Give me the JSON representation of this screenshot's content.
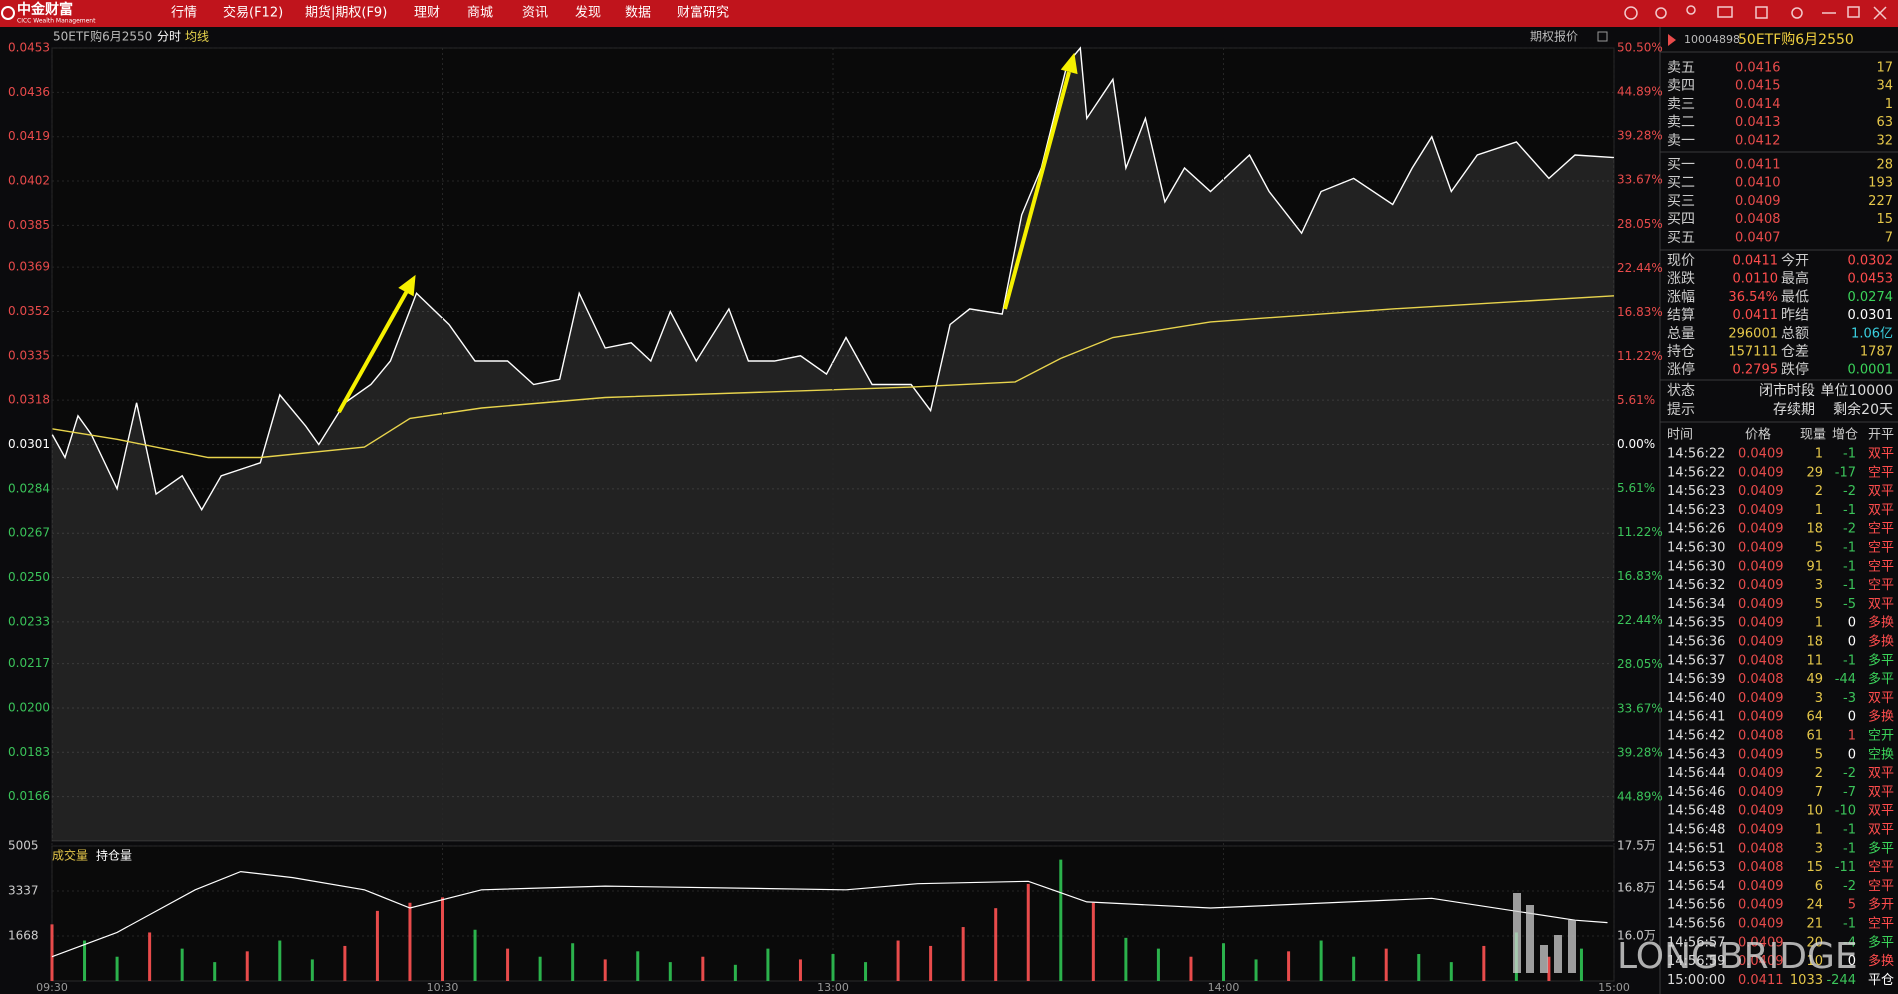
{
  "menu": {
    "brand": "中金财富",
    "brand_en": "CICC Wealth Management",
    "items": [
      "行情",
      "交易(F12)",
      "期货|期权(F9)",
      "理财",
      "商城",
      "资讯",
      "发现",
      "数据",
      "财富研究"
    ]
  },
  "toolbar": {
    "quote_button": "期权报价"
  },
  "chart_data": [
    {
      "type": "line",
      "title": "50ETF购6月2550",
      "label": "分时",
      "xlim": [
        0,
        240
      ],
      "ylim": [
        0.0149,
        0.0453
      ],
      "y2lim": [
        -50.5,
        50.5
      ],
      "grid": true,
      "yticks": [
        0.0453,
        0.0436,
        0.0419,
        0.0402,
        0.0385,
        0.0369,
        0.0352,
        0.0335,
        0.0318,
        0.0301,
        0.0284,
        0.0267,
        {
          "value": 0.025,
          "label": "0.0250"
        },
        0.0233,
        0.0217,
        {
          "value": 0.02,
          "label": "0.0200"
        },
        0.0183,
        0.0166
      ],
      "y2ticks": [
        {
          "value": 50.5,
          "label": "50.50%"
        },
        {
          "value": 44.89,
          "label": "44.89%"
        },
        {
          "value": 39.28,
          "label": "39.28%"
        },
        {
          "value": 33.67,
          "label": "33.67%"
        },
        {
          "value": 28.05,
          "label": "28.05%"
        },
        {
          "value": 22.44,
          "label": "22.44%"
        },
        {
          "value": 16.83,
          "label": "16.83%"
        },
        {
          "value": 11.22,
          "label": "11.22%"
        },
        {
          "value": 5.61,
          "label": "5.61%"
        },
        {
          "value": 0,
          "label": "0.00%"
        },
        {
          "value": -5.61,
          "label": "5.61%"
        },
        {
          "value": -11.22,
          "label": "11.22%"
        },
        {
          "value": -16.83,
          "label": "16.83%"
        },
        {
          "value": -22.44,
          "label": "22.44%"
        },
        {
          "value": -28.05,
          "label": "28.05%"
        },
        {
          "value": -33.67,
          "label": "33.67%"
        },
        {
          "value": -39.28,
          "label": "39.28%"
        },
        {
          "value": -44.89,
          "label": "44.89%"
        }
      ],
      "series": [
        {
          "color": "#ffffff",
          "fill": true,
          "x": [
            0,
            2,
            4,
            6,
            10,
            13,
            16,
            20,
            23,
            26,
            32,
            35,
            39,
            41,
            45,
            49,
            52,
            56,
            61,
            65,
            70,
            74,
            78,
            81,
            85,
            89,
            92,
            95,
            99,
            104,
            107,
            111,
            115,
            119,
            122,
            126,
            132,
            135,
            138,
            141,
            146,
            149,
            152,
            156,
            158,
            159,
            163,
            165,
            168,
            171,
            174,
            178,
            184,
            187,
            192,
            195,
            200,
            206,
            209,
            212,
            215,
            219,
            225,
            230,
            234,
            240
          ],
          "values": [
            0.0305,
            0.0296,
            0.0312,
            0.0305,
            0.0284,
            0.0317,
            0.0282,
            0.0289,
            0.0276,
            0.0289,
            0.0294,
            0.032,
            0.0308,
            0.0301,
            0.0317,
            0.0324,
            0.0333,
            0.0359,
            0.0347,
            0.0333,
            0.0333,
            0.0324,
            0.0326,
            0.0359,
            0.0338,
            0.034,
            0.0333,
            0.0352,
            0.0333,
            0.0353,
            0.0333,
            0.0333,
            0.0335,
            0.0328,
            0.0342,
            0.0324,
            0.0324,
            0.0314,
            0.0347,
            0.0353,
            0.0351,
            0.0389,
            0.0407,
            0.0447,
            0.0453,
            0.0426,
            0.0441,
            0.0407,
            0.0426,
            0.0394,
            0.0407,
            0.0398,
            0.0412,
            0.0398,
            0.0382,
            0.0398,
            0.0403,
            0.0393,
            0.0407,
            0.0419,
            0.0398,
            0.0412,
            0.0417,
            0.0403,
            0.0412,
            0.0411
          ]
        },
        {
          "name": "均线",
          "color": "#e8d44d",
          "x": [
            0,
            10,
            24,
            32,
            48,
            55,
            66,
            85,
            132,
            148,
            155,
            163,
            178,
            206,
            240
          ],
          "values": [
            0.0307,
            0.0303,
            0.0296,
            0.0296,
            0.03,
            0.0311,
            0.0315,
            0.0319,
            0.0323,
            0.0325,
            0.0334,
            0.0342,
            0.0348,
            0.0353,
            0.0358
          ]
        }
      ]
    },
    {
      "type": "bar",
      "xlim": [
        0,
        240
      ],
      "ylim": [
        0,
        5005
      ],
      "y2lim": [
        152500,
        175000
      ],
      "grid": true,
      "xticks": [
        {
          "value": 0,
          "label": "09:30"
        },
        {
          "value": 60,
          "label": "10:30"
        },
        {
          "value": 120,
          "label": "13:00"
        },
        {
          "value": 180,
          "label": "14:00"
        },
        {
          "value": 240,
          "label": "15:00"
        }
      ],
      "yticks": [
        5005,
        3337,
        1668
      ],
      "y2ticks": [
        {
          "value": 175000,
          "label": "17.5万"
        },
        {
          "value": 168000,
          "label": "16.8万"
        },
        {
          "value": 160000,
          "label": "16.0万"
        }
      ],
      "series": [
        {
          "name": "成交量",
          "color": "#e6c84a",
          "x": [
            0,
            5,
            10,
            15,
            20,
            25,
            30,
            35,
            40,
            45,
            50,
            55,
            60,
            65,
            70,
            75,
            80,
            85,
            90,
            95,
            100,
            105,
            110,
            115,
            120,
            125,
            130,
            135,
            140,
            145,
            150,
            155,
            160,
            165,
            170,
            175,
            180,
            185,
            190,
            195,
            200,
            205,
            210,
            215,
            220,
            225,
            230,
            235
          ],
          "values": [
            2100,
            1500,
            900,
            1800,
            1200,
            700,
            1100,
            1500,
            800,
            1300,
            2600,
            2900,
            3100,
            1900,
            1200,
            900,
            1400,
            800,
            1100,
            700,
            900,
            600,
            1200,
            800,
            1000,
            700,
            1500,
            1300,
            2000,
            2700,
            3600,
            4500,
            2900,
            1600,
            1200,
            900,
            1400,
            800,
            1100,
            1500,
            900,
            1200,
            1000,
            700,
            1300,
            1800,
            900,
            1200
          ],
          "bar_colors": [
            "#e84b4b",
            "#2bb24c",
            "#2bb24c",
            "#e84b4b",
            "#2bb24c",
            "#2bb24c",
            "#e84b4b",
            "#2bb24c",
            "#2bb24c",
            "#e84b4b",
            "#e84b4b",
            "#e84b4b",
            "#e84b4b",
            "#2bb24c",
            "#e84b4b",
            "#2bb24c",
            "#2bb24c",
            "#e84b4b",
            "#2bb24c",
            "#2bb24c",
            "#e84b4b",
            "#2bb24c",
            "#2bb24c",
            "#e84b4b",
            "#2bb24c",
            "#2bb24c",
            "#e84b4b",
            "#e84b4b",
            "#e84b4b",
            "#e84b4b",
            "#e84b4b",
            "#2bb24c",
            "#e84b4b",
            "#2bb24c",
            "#2bb24c",
            "#e84b4b",
            "#2bb24c",
            "#2bb24c",
            "#e84b4b",
            "#2bb24c",
            "#2bb24c",
            "#e84b4b",
            "#2bb24c",
            "#2bb24c",
            "#e84b4b",
            "#2bb24c",
            "#e84b4b",
            "#2bb24c"
          ]
        },
        {
          "name": "持仓量",
          "type": "line",
          "axis": "y2",
          "color": "#ffffff",
          "x": [
            0,
            10,
            22,
            29,
            37,
            48,
            55,
            66,
            85,
            122,
            133,
            150,
            159,
            178,
            212,
            234,
            239
          ],
          "values": [
            156550,
            160600,
            167700,
            170740,
            169730,
            167700,
            164660,
            167700,
            168310,
            167700,
            168720,
            169120,
            165680,
            164660,
            166280,
            162640,
            162230
          ]
        }
      ]
    }
  ],
  "quote": {
    "code": "10004898",
    "name": "50ETF购6月2550",
    "asks": [
      {
        "label": "卖五",
        "price": "0.0416",
        "volume": 17
      },
      {
        "label": "卖四",
        "price": "0.0415",
        "volume": 34
      },
      {
        "label": "卖三",
        "price": "0.0414",
        "volume": 1
      },
      {
        "label": "卖二",
        "price": "0.0413",
        "volume": 63
      },
      {
        "label": "卖一",
        "price": "0.0412",
        "volume": 32
      }
    ],
    "bids": [
      {
        "label": "买一",
        "price": "0.0411",
        "volume": 28
      },
      {
        "label": "买二",
        "price": "0.0410",
        "volume": 193
      },
      {
        "label": "买三",
        "price": "0.0409",
        "volume": 227
      },
      {
        "label": "买四",
        "price": "0.0408",
        "volume": 15
      },
      {
        "label": "买五",
        "price": "0.0407",
        "volume": 7
      }
    ],
    "stats": [
      {
        "label": "现价",
        "value": "0.0411",
        "color": "#ff4d4d"
      },
      {
        "label": "今开",
        "value": "0.0302",
        "color": "#ff4d4d"
      },
      {
        "label": "涨跌",
        "value": "0.0110",
        "color": "#ff4d4d"
      },
      {
        "label": "最高",
        "value": "0.0453",
        "color": "#ff4d4d"
      },
      {
        "label": "涨幅",
        "value": "36.54%",
        "color": "#ff4d4d"
      },
      {
        "label": "最低",
        "value": "0.0274",
        "color": "#3bd45a"
      },
      {
        "label": "结算",
        "value": "0.0411",
        "color": "#ff4d4d"
      },
      {
        "label": "昨结",
        "value": "0.0301",
        "color": "#ffffff"
      },
      {
        "label": "总量",
        "value": "296001",
        "color": "#e6c84a"
      },
      {
        "label": "总额",
        "value": "1.06亿",
        "color": "#3ad0e0"
      },
      {
        "label": "持仓",
        "value": "157111",
        "color": "#e6c84a"
      },
      {
        "label": "仓差",
        "value": "1787",
        "color": "#e6c84a"
      },
      {
        "label": "涨停",
        "value": "0.2795",
        "color": "#ff4d4d"
      },
      {
        "label": "跌停",
        "value": "0.0001",
        "color": "#3bd45a"
      }
    ],
    "status": [
      {
        "label": "状态",
        "values": [
          "闭市时段",
          "单位10000"
        ]
      },
      {
        "label": "提示",
        "values": [
          "存续期",
          "剩余20天"
        ]
      }
    ]
  },
  "trades": {
    "columns": [
      "时间",
      "价格",
      "现量",
      "增仓",
      "开平"
    ],
    "rows": [
      [
        "14:56:22",
        "0.0409",
        1,
        -1,
        "双平"
      ],
      [
        "14:56:22",
        "0.0409",
        29,
        -17,
        "空平"
      ],
      [
        "14:56:23",
        "0.0409",
        2,
        -2,
        "双平"
      ],
      [
        "14:56:23",
        "0.0409",
        1,
        -1,
        "双平"
      ],
      [
        "14:56:26",
        "0.0409",
        18,
        -2,
        "空平"
      ],
      [
        "14:56:30",
        "0.0409",
        5,
        -1,
        "空平"
      ],
      [
        "14:56:30",
        "0.0409",
        91,
        -1,
        "空平"
      ],
      [
        "14:56:32",
        "0.0409",
        3,
        -1,
        "空平"
      ],
      [
        "14:56:34",
        "0.0409",
        5,
        -5,
        "双平"
      ],
      [
        "14:56:35",
        "0.0409",
        1,
        0,
        "多换"
      ],
      [
        "14:56:36",
        "0.0409",
        18,
        0,
        "多换"
      ],
      [
        "14:56:37",
        "0.0408",
        11,
        -1,
        "多平"
      ],
      [
        "14:56:39",
        "0.0408",
        49,
        -44,
        "多平"
      ],
      [
        "14:56:40",
        "0.0409",
        3,
        -3,
        "双平"
      ],
      [
        "14:56:41",
        "0.0409",
        64,
        0,
        "多换"
      ],
      [
        "14:56:42",
        "0.0408",
        61,
        1,
        "空开"
      ],
      [
        "14:56:43",
        "0.0409",
        5,
        0,
        "空换"
      ],
      [
        "14:56:44",
        "0.0409",
        2,
        -2,
        "双平"
      ],
      [
        "14:56:46",
        "0.0409",
        7,
        -7,
        "双平"
      ],
      [
        "14:56:48",
        "0.0409",
        10,
        -10,
        "双平"
      ],
      [
        "14:56:48",
        "0.0409",
        1,
        -1,
        "双平"
      ],
      [
        "14:56:51",
        "0.0408",
        3,
        -1,
        "多平"
      ],
      [
        "14:56:53",
        "0.0408",
        15,
        -11,
        "空平"
      ],
      [
        "14:56:54",
        "0.0409",
        6,
        -2,
        "空平"
      ],
      [
        "14:56:56",
        "0.0409",
        24,
        5,
        "多开"
      ],
      [
        "14:56:56",
        "0.0409",
        21,
        -1,
        "空平"
      ],
      [
        "14:56:57",
        "0.0409",
        20,
        -4,
        "多平"
      ],
      [
        "14:56:59",
        "0.0409",
        10,
        0,
        "多换"
      ],
      [
        "15:00:00",
        "0.0411",
        1033,
        -244,
        "平仓"
      ]
    ],
    "type_colors": [
      "#ff4d4d",
      "#ff4d4d",
      "#ff4d4d",
      "#ff4d4d",
      "#ff4d4d",
      "#ff4d4d",
      "#ff4d4d",
      "#ff4d4d",
      "#ff4d4d",
      "#ff4d4d",
      "#ff4d4d",
      "#3bd45a",
      "#3bd45a",
      "#ff4d4d",
      "#ff4d4d",
      "#3bd45a",
      "#3bd45a",
      "#ff4d4d",
      "#ff4d4d",
      "#ff4d4d",
      "#ff4d4d",
      "#3bd45a",
      "#ff4d4d",
      "#ff4d4d",
      "#ff4d4d",
      "#ff4d4d",
      "#3bd45a",
      "#ff4d4d",
      "#ffffff"
    ]
  },
  "watermark": "LONGBRIDGE"
}
